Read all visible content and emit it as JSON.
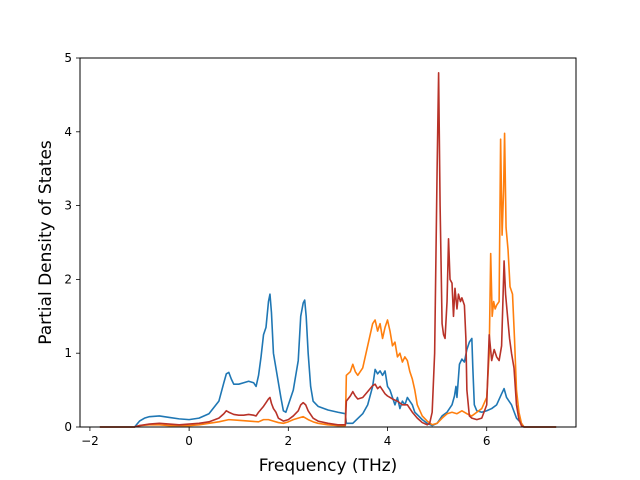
{
  "chart_data": {
    "type": "line",
    "title": "",
    "xlabel": "Frequency (THz)",
    "ylabel": "Partial Density of States",
    "xlim": [
      -2.2,
      7.8
    ],
    "ylim": [
      0,
      5
    ],
    "xticks": [
      -2,
      0,
      2,
      4,
      6
    ],
    "yticks": [
      0,
      1,
      2,
      3,
      4,
      5
    ],
    "xtick_labels": [
      "−2",
      "0",
      "2",
      "4",
      "6"
    ],
    "ytick_labels": [
      "0",
      "1",
      "2",
      "3",
      "4",
      "5"
    ],
    "grid": false,
    "legend": "none",
    "series": [
      {
        "color": "#1f77b4",
        "points": [
          [
            -1.8,
            0
          ],
          [
            -1.1,
            0
          ],
          [
            -1.0,
            0.08
          ],
          [
            -0.9,
            0.12
          ],
          [
            -0.8,
            0.14
          ],
          [
            -0.6,
            0.15
          ],
          [
            -0.4,
            0.13
          ],
          [
            -0.2,
            0.11
          ],
          [
            0,
            0.1
          ],
          [
            0.2,
            0.12
          ],
          [
            0.4,
            0.18
          ],
          [
            0.6,
            0.35
          ],
          [
            0.7,
            0.6
          ],
          [
            0.75,
            0.72
          ],
          [
            0.8,
            0.74
          ],
          [
            0.85,
            0.65
          ],
          [
            0.9,
            0.58
          ],
          [
            1.0,
            0.58
          ],
          [
            1.1,
            0.6
          ],
          [
            1.2,
            0.62
          ],
          [
            1.3,
            0.6
          ],
          [
            1.35,
            0.55
          ],
          [
            1.4,
            0.7
          ],
          [
            1.45,
            0.95
          ],
          [
            1.5,
            1.25
          ],
          [
            1.55,
            1.35
          ],
          [
            1.6,
            1.7
          ],
          [
            1.63,
            1.8
          ],
          [
            1.66,
            1.55
          ],
          [
            1.7,
            1.0
          ],
          [
            1.75,
            0.8
          ],
          [
            1.8,
            0.6
          ],
          [
            1.85,
            0.4
          ],
          [
            1.9,
            0.22
          ],
          [
            1.95,
            0.2
          ],
          [
            2.0,
            0.3
          ],
          [
            2.1,
            0.5
          ],
          [
            2.2,
            0.9
          ],
          [
            2.25,
            1.5
          ],
          [
            2.3,
            1.68
          ],
          [
            2.33,
            1.72
          ],
          [
            2.36,
            1.5
          ],
          [
            2.4,
            1.0
          ],
          [
            2.45,
            0.55
          ],
          [
            2.5,
            0.35
          ],
          [
            2.6,
            0.28
          ],
          [
            2.8,
            0.23
          ],
          [
            3.0,
            0.2
          ],
          [
            3.15,
            0.18
          ],
          [
            3.17,
            0.05
          ],
          [
            3.3,
            0.05
          ],
          [
            3.5,
            0.18
          ],
          [
            3.6,
            0.3
          ],
          [
            3.7,
            0.55
          ],
          [
            3.75,
            0.78
          ],
          [
            3.8,
            0.72
          ],
          [
            3.85,
            0.76
          ],
          [
            3.9,
            0.7
          ],
          [
            3.95,
            0.76
          ],
          [
            4.0,
            0.55
          ],
          [
            4.05,
            0.5
          ],
          [
            4.1,
            0.4
          ],
          [
            4.15,
            0.3
          ],
          [
            4.2,
            0.4
          ],
          [
            4.25,
            0.25
          ],
          [
            4.3,
            0.35
          ],
          [
            4.35,
            0.3
          ],
          [
            4.4,
            0.4
          ],
          [
            4.45,
            0.35
          ],
          [
            4.5,
            0.3
          ],
          [
            4.55,
            0.2
          ],
          [
            4.7,
            0.1
          ],
          [
            4.8,
            0.05
          ],
          [
            4.9,
            0.02
          ],
          [
            5.0,
            0.05
          ],
          [
            5.1,
            0.15
          ],
          [
            5.2,
            0.2
          ],
          [
            5.3,
            0.3
          ],
          [
            5.35,
            0.42
          ],
          [
            5.38,
            0.55
          ],
          [
            5.4,
            0.4
          ],
          [
            5.45,
            0.85
          ],
          [
            5.5,
            0.92
          ],
          [
            5.55,
            0.88
          ],
          [
            5.6,
            1.05
          ],
          [
            5.65,
            1.15
          ],
          [
            5.7,
            1.2
          ],
          [
            5.72,
            0.8
          ],
          [
            5.75,
            0.3
          ],
          [
            5.8,
            0.22
          ],
          [
            5.9,
            0.2
          ],
          [
            6.0,
            0.22
          ],
          [
            6.1,
            0.25
          ],
          [
            6.2,
            0.3
          ],
          [
            6.3,
            0.45
          ],
          [
            6.35,
            0.52
          ],
          [
            6.4,
            0.4
          ],
          [
            6.5,
            0.3
          ],
          [
            6.6,
            0.12
          ],
          [
            6.7,
            0.05
          ],
          [
            6.75,
            0
          ],
          [
            7.4,
            0
          ]
        ]
      },
      {
        "color": "#ff7f0e",
        "points": [
          [
            -1.8,
            0
          ],
          [
            -1.1,
            0
          ],
          [
            -1.0,
            0.02
          ],
          [
            -0.8,
            0.03
          ],
          [
            -0.6,
            0.03
          ],
          [
            -0.4,
            0.02
          ],
          [
            -0.2,
            0.02
          ],
          [
            0,
            0.02
          ],
          [
            0.2,
            0.03
          ],
          [
            0.4,
            0.05
          ],
          [
            0.6,
            0.07
          ],
          [
            0.8,
            0.1
          ],
          [
            1.0,
            0.09
          ],
          [
            1.2,
            0.08
          ],
          [
            1.4,
            0.07
          ],
          [
            1.5,
            0.1
          ],
          [
            1.6,
            0.1
          ],
          [
            1.7,
            0.08
          ],
          [
            1.8,
            0.06
          ],
          [
            1.9,
            0.05
          ],
          [
            2.0,
            0.07
          ],
          [
            2.1,
            0.1
          ],
          [
            2.2,
            0.12
          ],
          [
            2.3,
            0.14
          ],
          [
            2.4,
            0.1
          ],
          [
            2.5,
            0.07
          ],
          [
            2.6,
            0.05
          ],
          [
            2.8,
            0.03
          ],
          [
            3.0,
            0.02
          ],
          [
            3.15,
            0.02
          ],
          [
            3.17,
            0.7
          ],
          [
            3.25,
            0.75
          ],
          [
            3.3,
            0.85
          ],
          [
            3.35,
            0.75
          ],
          [
            3.4,
            0.7
          ],
          [
            3.5,
            0.8
          ],
          [
            3.6,
            1.1
          ],
          [
            3.7,
            1.4
          ],
          [
            3.75,
            1.45
          ],
          [
            3.8,
            1.3
          ],
          [
            3.85,
            1.4
          ],
          [
            3.9,
            1.2
          ],
          [
            3.95,
            1.35
          ],
          [
            4.0,
            1.45
          ],
          [
            4.05,
            1.3
          ],
          [
            4.1,
            1.1
          ],
          [
            4.15,
            1.15
          ],
          [
            4.2,
            0.95
          ],
          [
            4.25,
            1.0
          ],
          [
            4.3,
            0.88
          ],
          [
            4.35,
            0.95
          ],
          [
            4.4,
            0.9
          ],
          [
            4.45,
            0.75
          ],
          [
            4.5,
            0.65
          ],
          [
            4.55,
            0.5
          ],
          [
            4.6,
            0.3
          ],
          [
            4.7,
            0.15
          ],
          [
            4.8,
            0.08
          ],
          [
            4.9,
            0.03
          ],
          [
            5.0,
            0.05
          ],
          [
            5.1,
            0.12
          ],
          [
            5.2,
            0.18
          ],
          [
            5.3,
            0.2
          ],
          [
            5.4,
            0.18
          ],
          [
            5.5,
            0.22
          ],
          [
            5.6,
            0.18
          ],
          [
            5.7,
            0.15
          ],
          [
            5.8,
            0.2
          ],
          [
            5.9,
            0.25
          ],
          [
            6.0,
            0.4
          ],
          [
            6.05,
            1.0
          ],
          [
            6.08,
            2.35
          ],
          [
            6.11,
            1.5
          ],
          [
            6.14,
            1.7
          ],
          [
            6.17,
            1.6
          ],
          [
            6.2,
            1.65
          ],
          [
            6.25,
            1.7
          ],
          [
            6.28,
            3.9
          ],
          [
            6.31,
            2.6
          ],
          [
            6.34,
            3.2
          ],
          [
            6.36,
            3.98
          ],
          [
            6.39,
            2.7
          ],
          [
            6.43,
            2.4
          ],
          [
            6.47,
            1.9
          ],
          [
            6.52,
            1.8
          ],
          [
            6.56,
            1.2
          ],
          [
            6.6,
            0.5
          ],
          [
            6.65,
            0.2
          ],
          [
            6.7,
            0.05
          ],
          [
            6.75,
            0
          ],
          [
            7.4,
            0
          ]
        ]
      },
      {
        "color": "#b83228",
        "points": [
          [
            -1.8,
            0
          ],
          [
            -1.1,
            0
          ],
          [
            -1.0,
            0.02
          ],
          [
            -0.8,
            0.04
          ],
          [
            -0.6,
            0.05
          ],
          [
            -0.4,
            0.04
          ],
          [
            -0.2,
            0.03
          ],
          [
            0,
            0.04
          ],
          [
            0.2,
            0.05
          ],
          [
            0.4,
            0.07
          ],
          [
            0.6,
            0.12
          ],
          [
            0.7,
            0.18
          ],
          [
            0.75,
            0.22
          ],
          [
            0.8,
            0.2
          ],
          [
            0.9,
            0.17
          ],
          [
            1.0,
            0.16
          ],
          [
            1.1,
            0.16
          ],
          [
            1.2,
            0.17
          ],
          [
            1.3,
            0.16
          ],
          [
            1.35,
            0.15
          ],
          [
            1.4,
            0.2
          ],
          [
            1.5,
            0.28
          ],
          [
            1.55,
            0.33
          ],
          [
            1.6,
            0.38
          ],
          [
            1.63,
            0.4
          ],
          [
            1.66,
            0.32
          ],
          [
            1.7,
            0.25
          ],
          [
            1.75,
            0.2
          ],
          [
            1.8,
            0.12
          ],
          [
            1.9,
            0.08
          ],
          [
            2.0,
            0.1
          ],
          [
            2.1,
            0.15
          ],
          [
            2.2,
            0.22
          ],
          [
            2.25,
            0.3
          ],
          [
            2.3,
            0.33
          ],
          [
            2.35,
            0.3
          ],
          [
            2.4,
            0.22
          ],
          [
            2.5,
            0.12
          ],
          [
            2.6,
            0.08
          ],
          [
            2.8,
            0.05
          ],
          [
            3.0,
            0.03
          ],
          [
            3.15,
            0.03
          ],
          [
            3.17,
            0.35
          ],
          [
            3.25,
            0.42
          ],
          [
            3.3,
            0.48
          ],
          [
            3.35,
            0.42
          ],
          [
            3.4,
            0.38
          ],
          [
            3.5,
            0.4
          ],
          [
            3.6,
            0.48
          ],
          [
            3.7,
            0.56
          ],
          [
            3.75,
            0.58
          ],
          [
            3.8,
            0.52
          ],
          [
            3.85,
            0.55
          ],
          [
            3.9,
            0.5
          ],
          [
            3.95,
            0.45
          ],
          [
            4.0,
            0.42
          ],
          [
            4.05,
            0.4
          ],
          [
            4.1,
            0.38
          ],
          [
            4.2,
            0.35
          ],
          [
            4.3,
            0.3
          ],
          [
            4.4,
            0.3
          ],
          [
            4.45,
            0.25
          ],
          [
            4.5,
            0.2
          ],
          [
            4.6,
            0.12
          ],
          [
            4.7,
            0.06
          ],
          [
            4.8,
            0.03
          ],
          [
            4.85,
            0.05
          ],
          [
            4.9,
            0.2
          ],
          [
            4.95,
            1.0
          ],
          [
            5.0,
            3.5
          ],
          [
            5.03,
            4.8
          ],
          [
            5.06,
            3.0
          ],
          [
            5.1,
            1.4
          ],
          [
            5.13,
            1.25
          ],
          [
            5.16,
            1.2
          ],
          [
            5.2,
            1.7
          ],
          [
            5.23,
            2.55
          ],
          [
            5.26,
            2.0
          ],
          [
            5.3,
            1.95
          ],
          [
            5.33,
            1.5
          ],
          [
            5.36,
            1.88
          ],
          [
            5.4,
            1.6
          ],
          [
            5.43,
            1.8
          ],
          [
            5.47,
            1.7
          ],
          [
            5.5,
            1.75
          ],
          [
            5.55,
            1.65
          ],
          [
            5.58,
            1.2
          ],
          [
            5.6,
            0.5
          ],
          [
            5.65,
            0.15
          ],
          [
            5.7,
            0.12
          ],
          [
            5.8,
            0.1
          ],
          [
            5.9,
            0.12
          ],
          [
            6.0,
            0.3
          ],
          [
            6.05,
            1.25
          ],
          [
            6.1,
            0.9
          ],
          [
            6.15,
            1.05
          ],
          [
            6.2,
            0.95
          ],
          [
            6.25,
            0.9
          ],
          [
            6.3,
            1.1
          ],
          [
            6.35,
            2.25
          ],
          [
            6.38,
            1.8
          ],
          [
            6.42,
            1.5
          ],
          [
            6.46,
            1.2
          ],
          [
            6.5,
            1.0
          ],
          [
            6.55,
            0.8
          ],
          [
            6.6,
            0.3
          ],
          [
            6.65,
            0.1
          ],
          [
            6.7,
            0.02
          ],
          [
            6.75,
            0
          ],
          [
            7.4,
            0
          ]
        ]
      }
    ]
  }
}
